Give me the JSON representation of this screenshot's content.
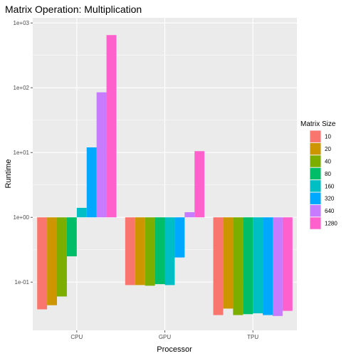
{
  "chart_data": {
    "type": "bar",
    "title": "Matrix Operation: Multiplication",
    "xlabel": "Processor",
    "ylabel": "Runtime",
    "y_scale": "log10",
    "y_baseline": 1,
    "ylim": [
      0.018,
      1200
    ],
    "y_ticks": [
      {
        "value": 0.1,
        "label": "1e-01"
      },
      {
        "value": 1,
        "label": "1e+00"
      },
      {
        "value": 10,
        "label": "1e+01"
      },
      {
        "value": 100,
        "label": "1e+02"
      },
      {
        "value": 1000,
        "label": "1e+03"
      }
    ],
    "categories": [
      "CPU",
      "GPU",
      "TPU"
    ],
    "legend": {
      "title": "Matrix Size",
      "position": "right"
    },
    "grid": true,
    "background": "#ebebeb",
    "series": [
      {
        "name": "10",
        "color": "#F8766D",
        "values": [
          0.038,
          0.09,
          0.031
        ]
      },
      {
        "name": "20",
        "color": "#CD9600",
        "values": [
          0.044,
          0.09,
          0.039
        ]
      },
      {
        "name": "40",
        "color": "#7CAE00",
        "values": [
          0.06,
          0.088,
          0.031
        ]
      },
      {
        "name": "80",
        "color": "#00BE67",
        "values": [
          0.25,
          0.093,
          0.032
        ]
      },
      {
        "name": "160",
        "color": "#00BFC4",
        "values": [
          1.4,
          0.09,
          0.033
        ]
      },
      {
        "name": "320",
        "color": "#00A9FF",
        "values": [
          12,
          0.24,
          0.031
        ]
      },
      {
        "name": "640",
        "color": "#C77CFF",
        "values": [
          85,
          1.2,
          0.03
        ]
      },
      {
        "name": "1280",
        "color": "#FF61CC",
        "values": [
          650,
          10.5,
          0.036
        ]
      }
    ]
  }
}
